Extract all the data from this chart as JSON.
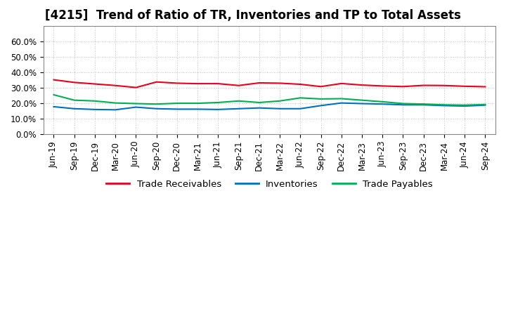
{
  "title": "[4215]  Trend of Ratio of TR, Inventories and TP to Total Assets",
  "x_labels": [
    "Jun-19",
    "Sep-19",
    "Dec-19",
    "Mar-20",
    "Jun-20",
    "Sep-20",
    "Dec-20",
    "Mar-21",
    "Jun-21",
    "Sep-21",
    "Dec-21",
    "Mar-22",
    "Jun-22",
    "Sep-22",
    "Dec-22",
    "Mar-23",
    "Jun-23",
    "Sep-23",
    "Dec-23",
    "Mar-24",
    "Jun-24",
    "Sep-24"
  ],
  "trade_receivables": [
    35.2,
    33.5,
    32.5,
    31.5,
    30.2,
    33.8,
    33.0,
    32.7,
    32.7,
    31.5,
    33.2,
    33.0,
    32.3,
    30.8,
    32.8,
    31.8,
    31.2,
    30.8,
    31.6,
    31.5,
    31.0,
    30.7
  ],
  "inventories": [
    17.8,
    16.5,
    16.0,
    15.8,
    17.5,
    16.5,
    16.2,
    16.2,
    16.0,
    16.5,
    17.0,
    16.5,
    16.5,
    18.5,
    20.2,
    19.8,
    19.5,
    19.0,
    19.0,
    18.5,
    18.2,
    18.8
  ],
  "trade_payables": [
    25.5,
    22.0,
    21.5,
    20.2,
    19.8,
    19.5,
    20.0,
    20.0,
    20.5,
    21.5,
    20.5,
    21.5,
    23.5,
    22.8,
    23.0,
    22.0,
    21.0,
    19.8,
    19.5,
    19.0,
    18.8,
    19.2
  ],
  "tr_color": "#e8001c",
  "inv_color": "#0070c0",
  "tp_color": "#00b050",
  "ylim": [
    0,
    70
  ],
  "yticks": [
    0,
    10,
    20,
    30,
    40,
    50,
    60
  ],
  "ytick_labels": [
    "0.0%",
    "10.0%",
    "20.0%",
    "30.0%",
    "40.0%",
    "50.0%",
    "60.0%"
  ],
  "bg_color": "#ffffff",
  "grid_color": "#b0b0b0",
  "legend_labels": [
    "Trade Receivables",
    "Inventories",
    "Trade Payables"
  ],
  "title_fontsize": 12,
  "tick_fontsize": 8.5,
  "legend_fontsize": 9.5
}
